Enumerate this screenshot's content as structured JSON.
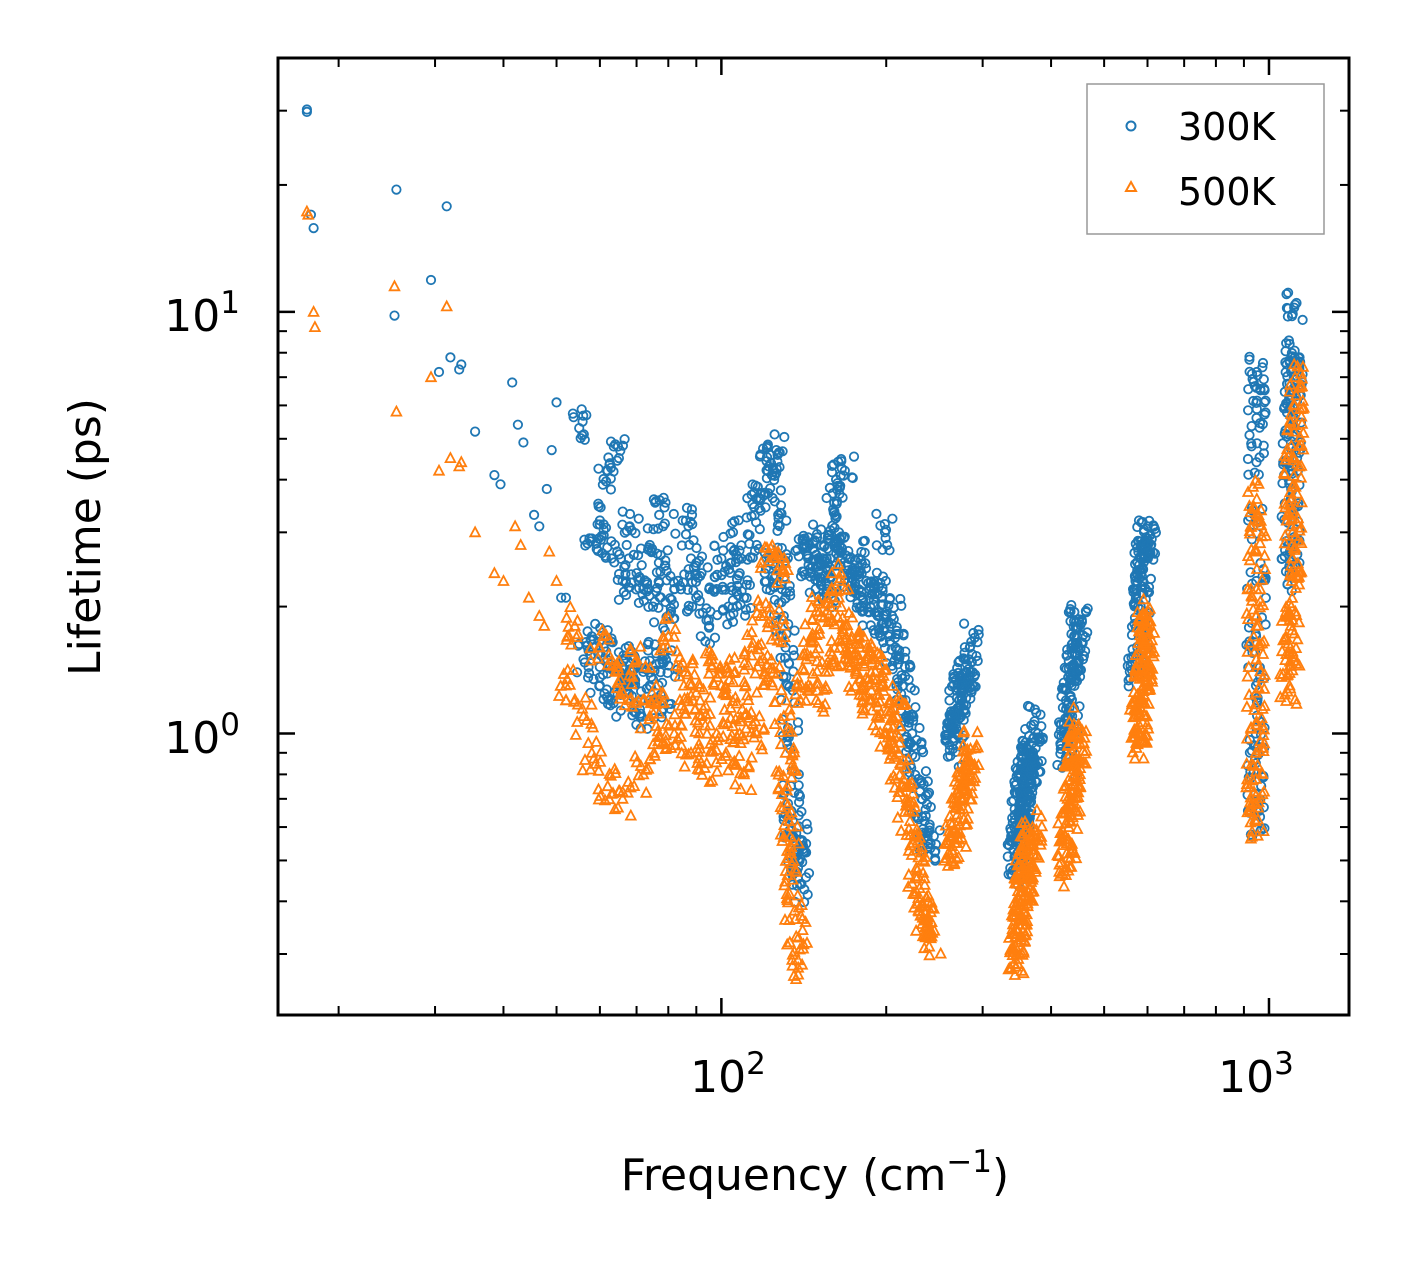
{
  "chart_data": {
    "type": "scatter",
    "xscale": "log",
    "yscale": "log",
    "xlabel": "Frequency (cm",
    "xlabel_sup": "−1",
    "xlabel_end": ")",
    "ylabel": "Lifetime (ps)",
    "xlim": [
      15.5,
      1400
    ],
    "ylim": [
      0.215,
      40
    ],
    "xticks": [
      {
        "base": "10",
        "exp": "2",
        "value": 100
      },
      {
        "base": "10",
        "exp": "3",
        "value": 1000
      }
    ],
    "yticks": [
      {
        "base": "10",
        "exp": "0",
        "value": 1
      },
      {
        "base": "10",
        "exp": "1",
        "value": 10
      }
    ],
    "legend": {
      "location": "upper right"
    },
    "series": [
      {
        "name": "300K",
        "marker": "circle",
        "color": "#1f77b4",
        "clusters": [
          {
            "x": [
              17.5,
              17.5
            ],
            "y": [
              30.2,
              29.8
            ]
          },
          {
            "x": [
              17.8,
              18.0,
              25.5,
              25.3,
              29.5,
              30.5,
              31.5,
              32.0,
              33.5,
              33.2,
              35.5,
              38.5,
              39.5,
              41.5,
              42.5,
              43.5,
              45.5,
              46.5,
              48.0,
              49.0,
              50.0,
              51.0,
              52.0
            ],
            "y": [
              17.0,
              15.8,
              19.5,
              9.8,
              11.9,
              7.2,
              17.8,
              7.8,
              7.5,
              7.3,
              5.2,
              4.1,
              3.9,
              6.8,
              5.4,
              4.9,
              3.3,
              3.1,
              3.8,
              4.7,
              6.1,
              2.1,
              2.1
            ]
          },
          {
            "x": [
              55,
              58,
              60,
              62,
              63,
              65,
              66,
              68,
              70,
              72,
              74,
              75,
              77,
              79,
              80,
              82,
              85,
              88,
              90,
              92,
              95,
              98,
              100,
              103,
              105,
              108,
              110
            ],
            "y": [
              5.3,
              2.9,
              3.2,
              4.2,
              2.6,
              4.5,
              2.3,
              3.1,
              2.4,
              2.2,
              2.8,
              2.0,
              3.3,
              2.5,
              1.9,
              2.2,
              3.2,
              2.6,
              2.1,
              2.4,
              1.8,
              2.2,
              2.6,
              2.0,
              3.0,
              2.4,
              2.1
            ]
          },
          {
            "x": [
              56,
              58,
              60,
              61,
              63,
              64,
              66,
              67,
              69,
              71,
              72,
              74,
              76,
              78,
              80
            ],
            "y": [
              1.5,
              1.7,
              1.3,
              1.6,
              1.2,
              1.45,
              1.35,
              1.25,
              1.5,
              1.1,
              1.4,
              1.3,
              1.55,
              1.2,
              1.45
            ]
          },
          {
            "x": [
              114,
              116,
              118,
              120,
              122,
              124,
              126,
              127,
              128,
              129,
              130,
              131,
              132,
              133,
              134,
              135
            ],
            "y": [
              3.5,
              2.8,
              3.6,
              2.4,
              4.3,
              4.1,
              4.7,
              3.3,
              2.6,
              2.2,
              1.9,
              1.6,
              1.3,
              1.0,
              0.75,
              0.62
            ]
          },
          {
            "x": [
              136,
              137,
              138,
              139,
              140,
              142,
              144,
              146,
              148,
              150,
              152,
              154,
              156,
              158,
              160,
              162,
              164,
              166,
              168,
              170
            ],
            "y": [
              0.52,
              0.58,
              0.48,
              0.56,
              0.44,
              2.9,
              2.6,
              2.4,
              2.7,
              2.3,
              2.5,
              2.8,
              2.2,
              2.6,
              3.4,
              4.0,
              3.0,
              2.7,
              4.2,
              2.5
            ]
          },
          {
            "x": [
              172,
              175,
              178,
              181,
              184,
              187,
              190,
              193,
              196,
              199,
              202,
              205,
              208,
              211,
              214,
              217,
              220,
              223,
              226,
              229,
              232,
              235,
              238,
              241
            ],
            "y": [
              2.4,
              2.2,
              2.6,
              2.1,
              2.3,
              2.0,
              2.2,
              1.9,
              2.1,
              3.0,
              1.7,
              1.9,
              1.6,
              1.5,
              1.35,
              1.2,
              1.1,
              1.0,
              0.88,
              0.78,
              0.7,
              0.62,
              0.57,
              0.55
            ]
          },
          {
            "x": [
              265,
              266,
              267,
              268,
              269,
              270,
              272,
              274,
              276,
              278,
              280,
              283,
              286
            ],
            "y": [
              0.92,
              0.96,
              1.0,
              1.05,
              1.1,
              1.15,
              1.2,
              1.25,
              1.3,
              1.35,
              1.4,
              1.5,
              1.65
            ]
          },
          {
            "x": [
              345,
              346,
              347,
              348,
              349,
              350,
              351,
              352,
              353,
              354,
              355,
              356,
              357,
              358,
              359,
              360,
              361,
              362,
              364,
              366,
              368,
              370,
              372
            ],
            "y": [
              0.48,
              0.5,
              0.52,
              0.55,
              0.57,
              0.6,
              0.62,
              0.64,
              0.66,
              0.68,
              0.7,
              0.72,
              0.74,
              0.76,
              0.78,
              0.8,
              0.82,
              0.84,
              0.86,
              0.88,
              0.9,
              0.95,
              1.05
            ]
          },
          {
            "x": [
              425,
              426,
              428,
              430,
              432,
              434,
              436,
              438,
              440,
              442,
              444,
              446,
              448,
              450
            ],
            "y": [
              0.85,
              0.92,
              1.0,
              1.08,
              1.15,
              1.22,
              1.3,
              1.38,
              1.46,
              1.54,
              1.62,
              1.7,
              1.78,
              1.84
            ]
          },
          {
            "x": [
              575,
              577,
              579,
              581,
              583,
              585,
              587,
              589,
              591,
              593,
              595,
              597,
              599,
              601
            ],
            "y": [
              1.4,
              1.55,
              1.7,
              1.85,
              2.0,
              2.15,
              2.3,
              2.45,
              2.6,
              2.75,
              2.85,
              2.92,
              2.8,
              2.6
            ]
          },
          {
            "x": [
              945,
              945,
              946,
              946,
              947,
              947,
              948,
              948,
              949,
              949,
              950,
              950
            ],
            "y": [
              0.62,
              0.72,
              0.85,
              1.0,
              1.3,
              1.7,
              2.3,
              3.2,
              4.4,
              5.6,
              6.6,
              7.2
            ]
          },
          {
            "x": [
              1090,
              1092,
              1094,
              1096,
              1098,
              1100,
              1102,
              1104,
              1106,
              1108,
              1110,
              1112,
              1114,
              1116
            ],
            "y": [
              2.4,
              2.7,
              3.0,
              3.4,
              3.8,
              4.3,
              4.8,
              5.4,
              6.0,
              6.5,
              7.0,
              7.5,
              7.8,
              10.4
            ]
          }
        ]
      },
      {
        "name": "500K",
        "marker": "triangle",
        "color": "#ff7f0e",
        "clusters": [
          {
            "x": [
              17.5,
              17.6
            ],
            "y": [
              17.3,
              17.0
            ]
          },
          {
            "x": [
              18.0,
              18.1,
              25.3,
              25.5,
              29.5,
              30.5,
              31.5,
              32.0,
              33.5,
              33.2,
              35.5,
              38.5,
              40.0,
              42.0,
              43.0,
              44.5,
              46.5,
              47.5,
              48.5,
              50.0
            ],
            "y": [
              10.0,
              9.2,
              11.5,
              5.8,
              7.0,
              4.2,
              10.3,
              4.5,
              4.4,
              4.3,
              3.0,
              2.4,
              2.3,
              3.1,
              2.8,
              2.1,
              1.9,
              1.8,
              2.7,
              2.3
            ]
          },
          {
            "x": [
              52,
              54,
              56,
              58,
              60,
              62,
              64,
              66,
              68,
              70,
              72,
              74,
              76,
              78,
              80,
              82,
              84,
              86,
              88,
              90,
              92,
              94,
              96,
              98,
              100,
              102,
              104,
              106,
              108,
              110
            ],
            "y": [
              1.3,
              1.8,
              1.1,
              0.9,
              1.6,
              0.75,
              1.4,
              0.7,
              1.2,
              1.5,
              0.8,
              1.1,
              1.3,
              0.95,
              1.7,
              1.0,
              1.2,
              1.4,
              0.9,
              1.25,
              1.1,
              0.85,
              1.5,
              1.0,
              1.3,
              0.9,
              1.15,
              1.4,
              1.0,
              0.8
            ]
          },
          {
            "x": [
              112,
              114,
              116,
              118,
              120,
              122,
              124,
              126,
              128,
              130,
              131,
              132,
              133,
              134,
              135,
              136,
              137,
              138
            ],
            "y": [
              1.2,
              1.6,
              1.0,
              1.9,
              1.4,
              2.7,
              1.3,
              1.8,
              2.5,
              1.1,
              0.9,
              0.75,
              0.62,
              0.52,
              0.45,
              0.38,
              0.33,
              0.29
            ]
          },
          {
            "x": [
              140,
              143,
              146,
              149,
              152,
              155,
              158,
              161,
              164,
              167,
              170,
              173,
              176,
              179,
              182,
              185,
              188,
              191,
              194,
              197,
              200,
              203,
              206,
              209,
              212,
              215,
              218,
              221,
              224,
              227,
              230,
              233,
              236,
              239,
              242
            ],
            "y": [
              1.3,
              1.5,
              1.7,
              1.2,
              1.9,
              1.4,
              2.0,
              1.6,
              2.3,
              1.8,
              1.5,
              1.7,
              1.4,
              1.6,
              1.3,
              1.5,
              1.2,
              1.4,
              1.1,
              1.3,
              1.0,
              1.2,
              0.95,
              1.1,
              0.85,
              0.78,
              0.7,
              0.62,
              0.55,
              0.48,
              0.43,
              0.39,
              0.36,
              0.34,
              0.33
            ]
          },
          {
            "x": [
              265,
              267,
              269,
              271,
              273,
              275,
              277,
              279,
              281,
              283,
              285
            ],
            "y": [
              0.52,
              0.55,
              0.58,
              0.62,
              0.66,
              0.7,
              0.74,
              0.78,
              0.82,
              0.86,
              0.92
            ]
          },
          {
            "x": [
              345,
              346,
              347,
              348,
              349,
              350,
              352,
              354,
              356,
              358,
              360,
              362,
              364,
              366,
              368,
              370
            ],
            "y": [
              0.28,
              0.3,
              0.32,
              0.34,
              0.36,
              0.38,
              0.4,
              0.42,
              0.44,
              0.46,
              0.48,
              0.5,
              0.52,
              0.54,
              0.56,
              0.6
            ]
          },
          {
            "x": [
              425,
              427,
              429,
              431,
              433,
              435,
              437,
              439,
              441,
              443,
              445,
              447,
              449
            ],
            "y": [
              0.48,
              0.52,
              0.56,
              0.6,
              0.64,
              0.68,
              0.72,
              0.76,
              0.8,
              0.85,
              0.9,
              0.98,
              1.05
            ]
          },
          {
            "x": [
              575,
              577,
              579,
              581,
              583,
              585,
              587,
              589,
              591,
              593,
              595,
              597,
              599,
              601
            ],
            "y": [
              0.95,
              1.0,
              1.05,
              1.1,
              1.15,
              1.2,
              1.28,
              1.36,
              1.44,
              1.52,
              1.62,
              1.75,
              1.9,
              1.8
            ]
          },
          {
            "x": [
              945,
              945,
              946,
              946,
              947,
              947,
              948,
              948,
              949,
              949,
              950,
              950
            ],
            "y": [
              0.62,
              0.68,
              0.78,
              0.9,
              1.05,
              1.25,
              1.5,
              1.8,
              2.2,
              2.7,
              3.2,
              3.6
            ]
          },
          {
            "x": [
              1090,
              1092,
              1094,
              1096,
              1098,
              1100,
              1102,
              1104,
              1106,
              1108,
              1110,
              1112,
              1114,
              1116
            ],
            "y": [
              1.3,
              1.45,
              1.6,
              1.8,
              2.0,
              2.3,
              2.6,
              3.0,
              3.4,
              3.9,
              4.5,
              5.2,
              6.0,
              7.0
            ]
          }
        ]
      }
    ]
  }
}
